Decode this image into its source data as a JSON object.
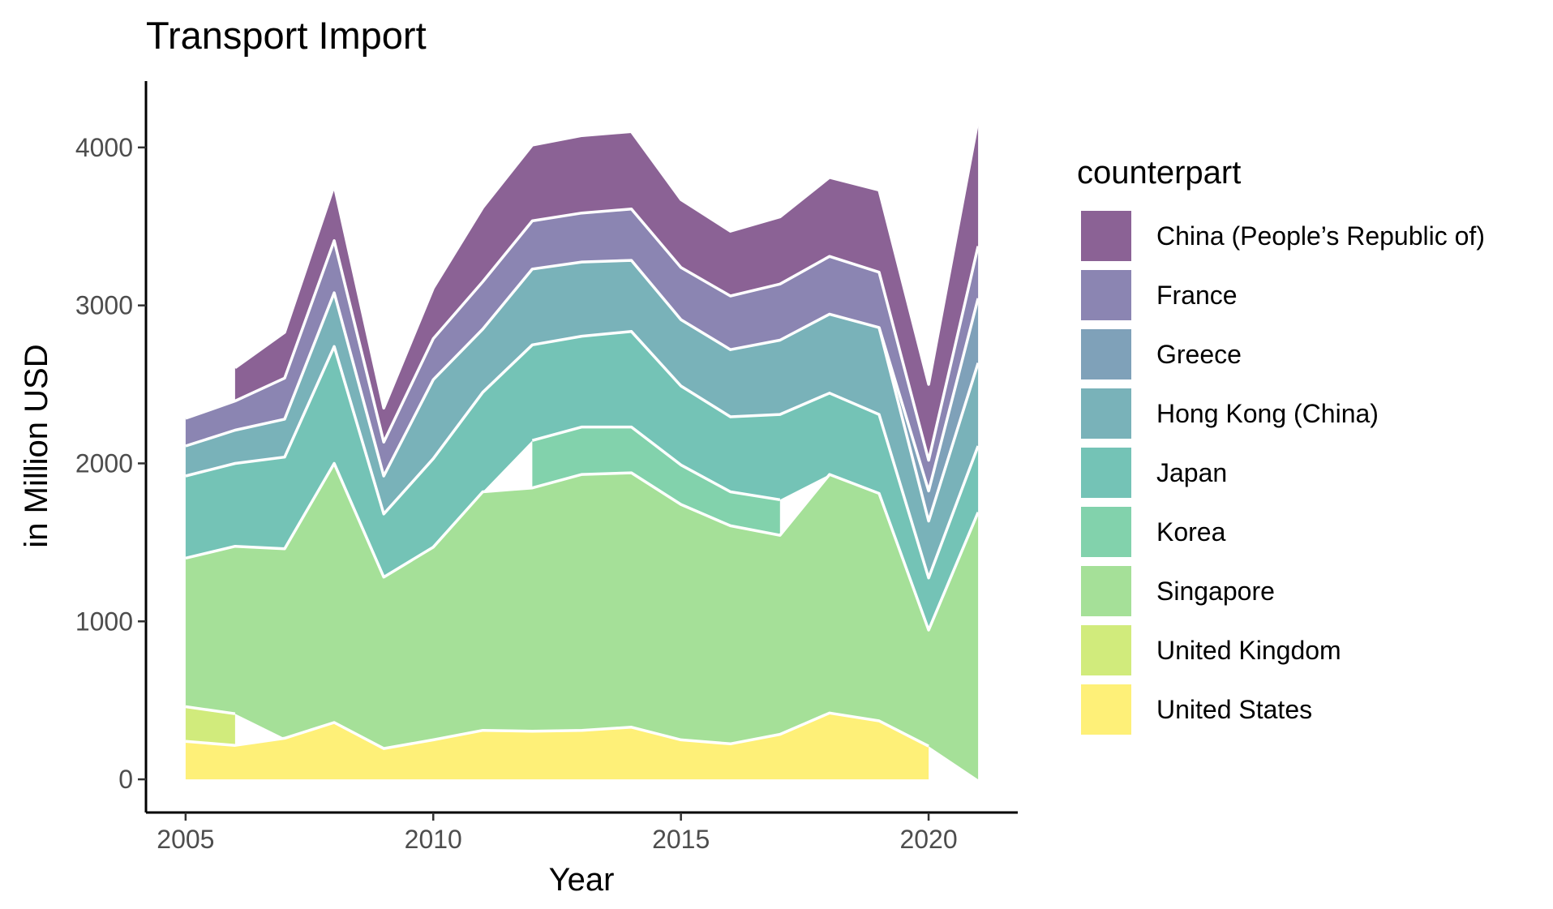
{
  "chart_data": {
    "type": "area",
    "title": "Transport Import",
    "xlabel": "Year",
    "ylabel": "in Million USD",
    "xlim": [
      2004.2,
      2021.8
    ],
    "ylim": [
      -210,
      4420
    ],
    "x_ticks": [
      2005,
      2010,
      2015,
      2020
    ],
    "y_ticks": [
      0,
      1000,
      2000,
      3000,
      4000
    ],
    "grid": false,
    "legend": {
      "title": "counterpart",
      "position": "right"
    },
    "series": [
      {
        "name": "United States",
        "color": "#FDE725",
        "x": [
          2005,
          2006,
          2007,
          2008,
          2009,
          2010,
          2011,
          2012,
          2013,
          2014,
          2015,
          2016,
          2017,
          2018,
          2019,
          2020
        ],
        "values": [
          240,
          215,
          260,
          360,
          195,
          250,
          310,
          305,
          310,
          330,
          250,
          225,
          285,
          420,
          370,
          210
        ]
      },
      {
        "name": "United Kingdom",
        "color": "#B5DE2B",
        "x": [
          2005,
          2006
        ],
        "values": [
          220,
          200
        ]
      },
      {
        "name": "Singapore",
        "color": "#6DCD59",
        "x": [
          2005,
          2006,
          2007,
          2008,
          2009,
          2010,
          2011,
          2012,
          2013,
          2014,
          2015,
          2016,
          2017,
          2018,
          2019,
          2020,
          2021
        ],
        "values": [
          940,
          1060,
          1200,
          1640,
          1085,
          1220,
          1510,
          1540,
          1620,
          1610,
          1490,
          1380,
          1260,
          1510,
          1440,
          735,
          1690
        ]
      },
      {
        "name": "Korea",
        "color": "#35B779",
        "x": [
          2012,
          2013,
          2014,
          2015,
          2016,
          2017
        ],
        "values": [
          300,
          300,
          290,
          250,
          215,
          225
        ]
      },
      {
        "name": "Japan",
        "color": "#1F9E89",
        "x": [
          2005,
          2006,
          2007,
          2008,
          2009,
          2010,
          2011,
          2012,
          2013,
          2014,
          2015,
          2016,
          2017,
          2018,
          2019,
          2020,
          2021
        ],
        "values": [
          520,
          525,
          580,
          740,
          400,
          560,
          630,
          605,
          575,
          605,
          500,
          475,
          540,
          515,
          500,
          330,
          420
        ]
      },
      {
        "name": "Hong Kong (China)",
        "color": "#26828E",
        "x": [
          2005,
          2006,
          2007,
          2008,
          2009,
          2010,
          2011,
          2012,
          2013,
          2014,
          2015,
          2016,
          2017,
          2018,
          2019,
          2020,
          2021
        ],
        "values": [
          190,
          210,
          240,
          340,
          240,
          500,
          400,
          480,
          470,
          450,
          420,
          425,
          470,
          500,
          550,
          360,
          525
        ]
      },
      {
        "name": "Greece",
        "color": "#31688E",
        "x": [
          2019,
          2020,
          2021
        ],
        "values": [
          0,
          190,
          410
        ]
      },
      {
        "name": "France",
        "color": "#443A83",
        "x": [
          2005,
          2006,
          2007,
          2008,
          2009,
          2010,
          2011,
          2012,
          2013,
          2014,
          2015,
          2016,
          2017,
          2018,
          2019,
          2020,
          2021
        ],
        "values": [
          175,
          185,
          260,
          330,
          215,
          260,
          300,
          305,
          310,
          325,
          330,
          340,
          355,
          365,
          350,
          195,
          330
        ]
      },
      {
        "name": "China (People’s Republic of)",
        "color": "#440154",
        "x": [
          2006,
          2007,
          2008,
          2009,
          2010,
          2011,
          2012,
          2013,
          2014,
          2015,
          2016,
          2017,
          2018,
          2019,
          2020,
          2021
        ],
        "values": [
          210,
          290,
          350,
          215,
          320,
          470,
          480,
          490,
          490,
          430,
          410,
          425,
          500,
          520,
          480,
          800
        ]
      }
    ]
  }
}
